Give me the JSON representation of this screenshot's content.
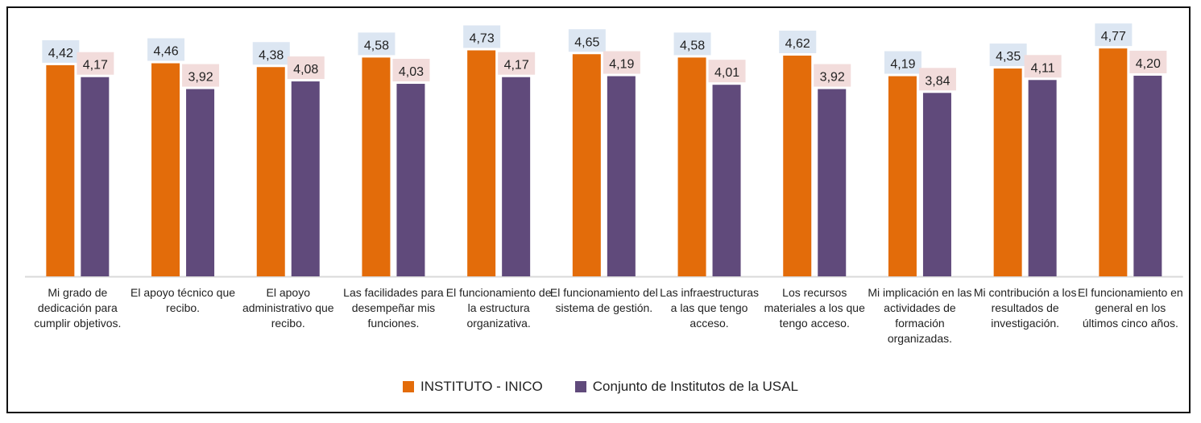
{
  "chart_data": {
    "type": "bar",
    "categories": [
      "Mi grado de dedicación para cumplir objetivos.",
      "El apoyo técnico que recibo.",
      "El apoyo administrativo que recibo.",
      "Las facilidades para desempeñar mis funciones.",
      "El funcionamiento de la estructura organizativa.",
      "El funcionamiento del sistema de gestión.",
      "Las infraestructuras a las que tengo acceso.",
      "Los recursos materiales a los que tengo acceso.",
      "Mi implicación en las actividades de formación organizadas.",
      "Mi contribución a los resultados de investigación.",
      "El funcionamiento en general en los últimos cinco años."
    ],
    "series": [
      {
        "name": "INSTITUTO - INICO",
        "color": "#e36c0a",
        "label_bg": "#dce6f2",
        "values": [
          4.42,
          4.46,
          4.38,
          4.58,
          4.73,
          4.65,
          4.58,
          4.62,
          4.19,
          4.35,
          4.77
        ],
        "labels": [
          "4,42",
          "4,46",
          "4,38",
          "4,58",
          "4,73",
          "4,65",
          "4,58",
          "4,62",
          "4,19",
          "4,35",
          "4,77"
        ]
      },
      {
        "name": "Conjunto de Institutos de la USAL",
        "color": "#604a7b",
        "label_bg": "#f2dcdb",
        "values": [
          4.17,
          3.92,
          4.08,
          4.03,
          4.17,
          4.19,
          4.01,
          3.92,
          3.84,
          4.11,
          4.2
        ],
        "labels": [
          "4,17",
          "3,92",
          "4,08",
          "4,03",
          "4,17",
          "4,19",
          "4,01",
          "3,92",
          "3,84",
          "4,11",
          "4,20"
        ]
      }
    ],
    "ylim": [
      0,
      5
    ],
    "grid": false,
    "legend": "bottom"
  }
}
